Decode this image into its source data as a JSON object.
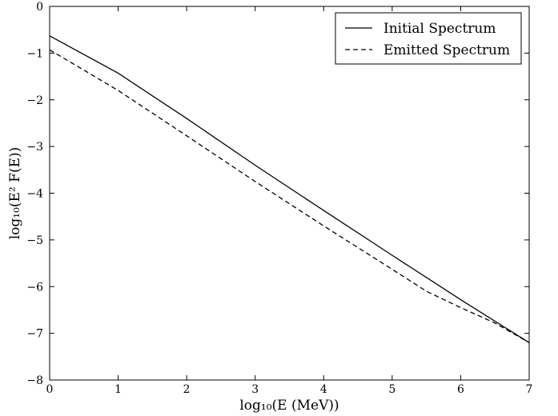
{
  "chart_data": {
    "type": "line",
    "title": "",
    "xlabel": "log₁₀(E (MeV))",
    "ylabel": "log₁₀(E² F(E))",
    "xlim": [
      0,
      7
    ],
    "ylim": [
      -8,
      0
    ],
    "xticks": [
      0,
      1,
      2,
      3,
      4,
      5,
      6,
      7
    ],
    "xtick_labels": [
      "0",
      "1",
      "2",
      "3",
      "4",
      "5",
      "6",
      "7"
    ],
    "yticks": [
      0,
      -1,
      -2,
      -3,
      -4,
      -5,
      -6,
      -7,
      -8
    ],
    "ytick_labels": [
      "0",
      "−1",
      "−2",
      "−3",
      "−4",
      "−5",
      "−6",
      "−7",
      "−8"
    ],
    "grid": false,
    "legend_position": "top-right",
    "series": [
      {
        "name": "Initial Spectrum",
        "style": "solid",
        "color": "#000000",
        "x": [
          0,
          1,
          2,
          3,
          4,
          5,
          6,
          7
        ],
        "y": [
          -0.63,
          -1.43,
          -2.4,
          -3.4,
          -4.37,
          -5.33,
          -6.28,
          -7.2
        ]
      },
      {
        "name": "Emitted Spectrum",
        "style": "dashed",
        "color": "#000000",
        "x": [
          0,
          1,
          2,
          3,
          4,
          5,
          5.5,
          6,
          6.5,
          7
        ],
        "y": [
          -0.93,
          -1.8,
          -2.77,
          -3.75,
          -4.7,
          -5.63,
          -6.1,
          -6.45,
          -6.78,
          -7.2
        ]
      }
    ]
  }
}
